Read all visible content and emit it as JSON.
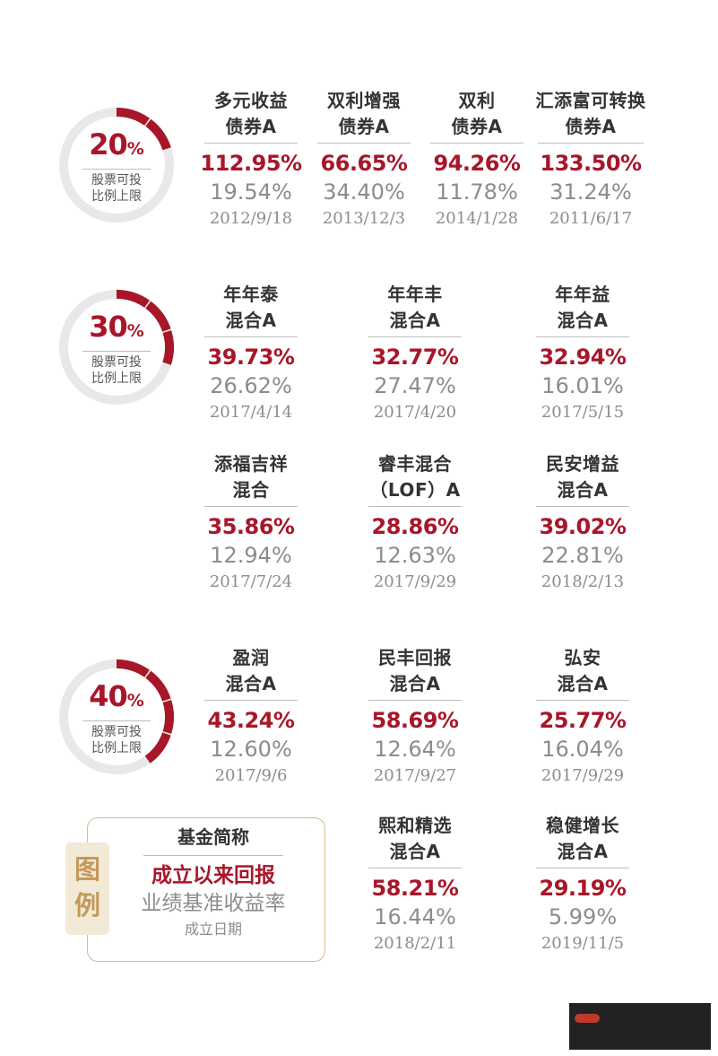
{
  "tiers": [
    {
      "pct": "20",
      "sym": "%",
      "label1": "股票可投",
      "label2": "比例上限",
      "fill": 0.2
    },
    {
      "pct": "30",
      "sym": "%",
      "label1": "股票可投",
      "label2": "比例上限",
      "fill": 0.3
    },
    {
      "pct": "40",
      "sym": "%",
      "label1": "股票可投",
      "label2": "比例上限",
      "fill": 0.4
    }
  ],
  "funds": [
    {
      "line1": "多元收益",
      "line2": "债券A",
      "ret": "112.95%",
      "bench": "19.54%",
      "date": "2012/9/18"
    },
    {
      "line1": "双利增强",
      "line2": "债券A",
      "ret": "66.65%",
      "bench": "34.40%",
      "date": "2013/12/3"
    },
    {
      "line1": "双利",
      "line2": "债券A",
      "ret": "94.26%",
      "bench": "11.78%",
      "date": "2014/1/28"
    },
    {
      "line1": "汇添富可转换",
      "line2": "债券A",
      "ret": "133.50%",
      "bench": "31.24%",
      "date": "2011/6/17"
    },
    {
      "line1": "年年泰",
      "line2": "混合A",
      "ret": "39.73%",
      "bench": "26.62%",
      "date": "2017/4/14"
    },
    {
      "line1": "年年丰",
      "line2": "混合A",
      "ret": "32.77%",
      "bench": "27.47%",
      "date": "2017/4/20"
    },
    {
      "line1": "年年益",
      "line2": "混合A",
      "ret": "32.94%",
      "bench": "16.01%",
      "date": "2017/5/15"
    },
    {
      "line1": "添福吉祥",
      "line2": "混合",
      "ret": "35.86%",
      "bench": "12.94%",
      "date": "2017/7/24"
    },
    {
      "line1": "睿丰混合",
      "line2": "（LOF）A",
      "ret": "28.86%",
      "bench": "12.63%",
      "date": "2017/9/29"
    },
    {
      "line1": "民安增益",
      "line2": "混合A",
      "ret": "39.02%",
      "bench": "22.81%",
      "date": "2018/2/13"
    },
    {
      "line1": "盈润",
      "line2": "混合A",
      "ret": "43.24%",
      "bench": "12.60%",
      "date": "2017/9/6"
    },
    {
      "line1": "民丰回报",
      "line2": "混合A",
      "ret": "58.69%",
      "bench": "12.64%",
      "date": "2017/9/27"
    },
    {
      "line1": "弘安",
      "line2": "混合A",
      "ret": "25.77%",
      "bench": "16.04%",
      "date": "2017/9/29"
    },
    {
      "line1": "熙和精选",
      "line2": "混合A",
      "ret": "58.21%",
      "bench": "16.44%",
      "date": "2018/2/11"
    },
    {
      "line1": "稳健增长",
      "line2": "混合A",
      "ret": "29.19%",
      "bench": "5.99%",
      "date": "2019/11/5"
    }
  ],
  "legend": {
    "tag1": "图",
    "tag2": "例",
    "name": "基金简称",
    "ret": "成立以来回报",
    "bench": "业绩基准收益率",
    "date": "成立日期"
  },
  "colors": {
    "accent": "#a8162a",
    "track": "#e8e8e8",
    "legend_border": "#d9b98a",
    "legend_tag": "#f3e9d7"
  }
}
